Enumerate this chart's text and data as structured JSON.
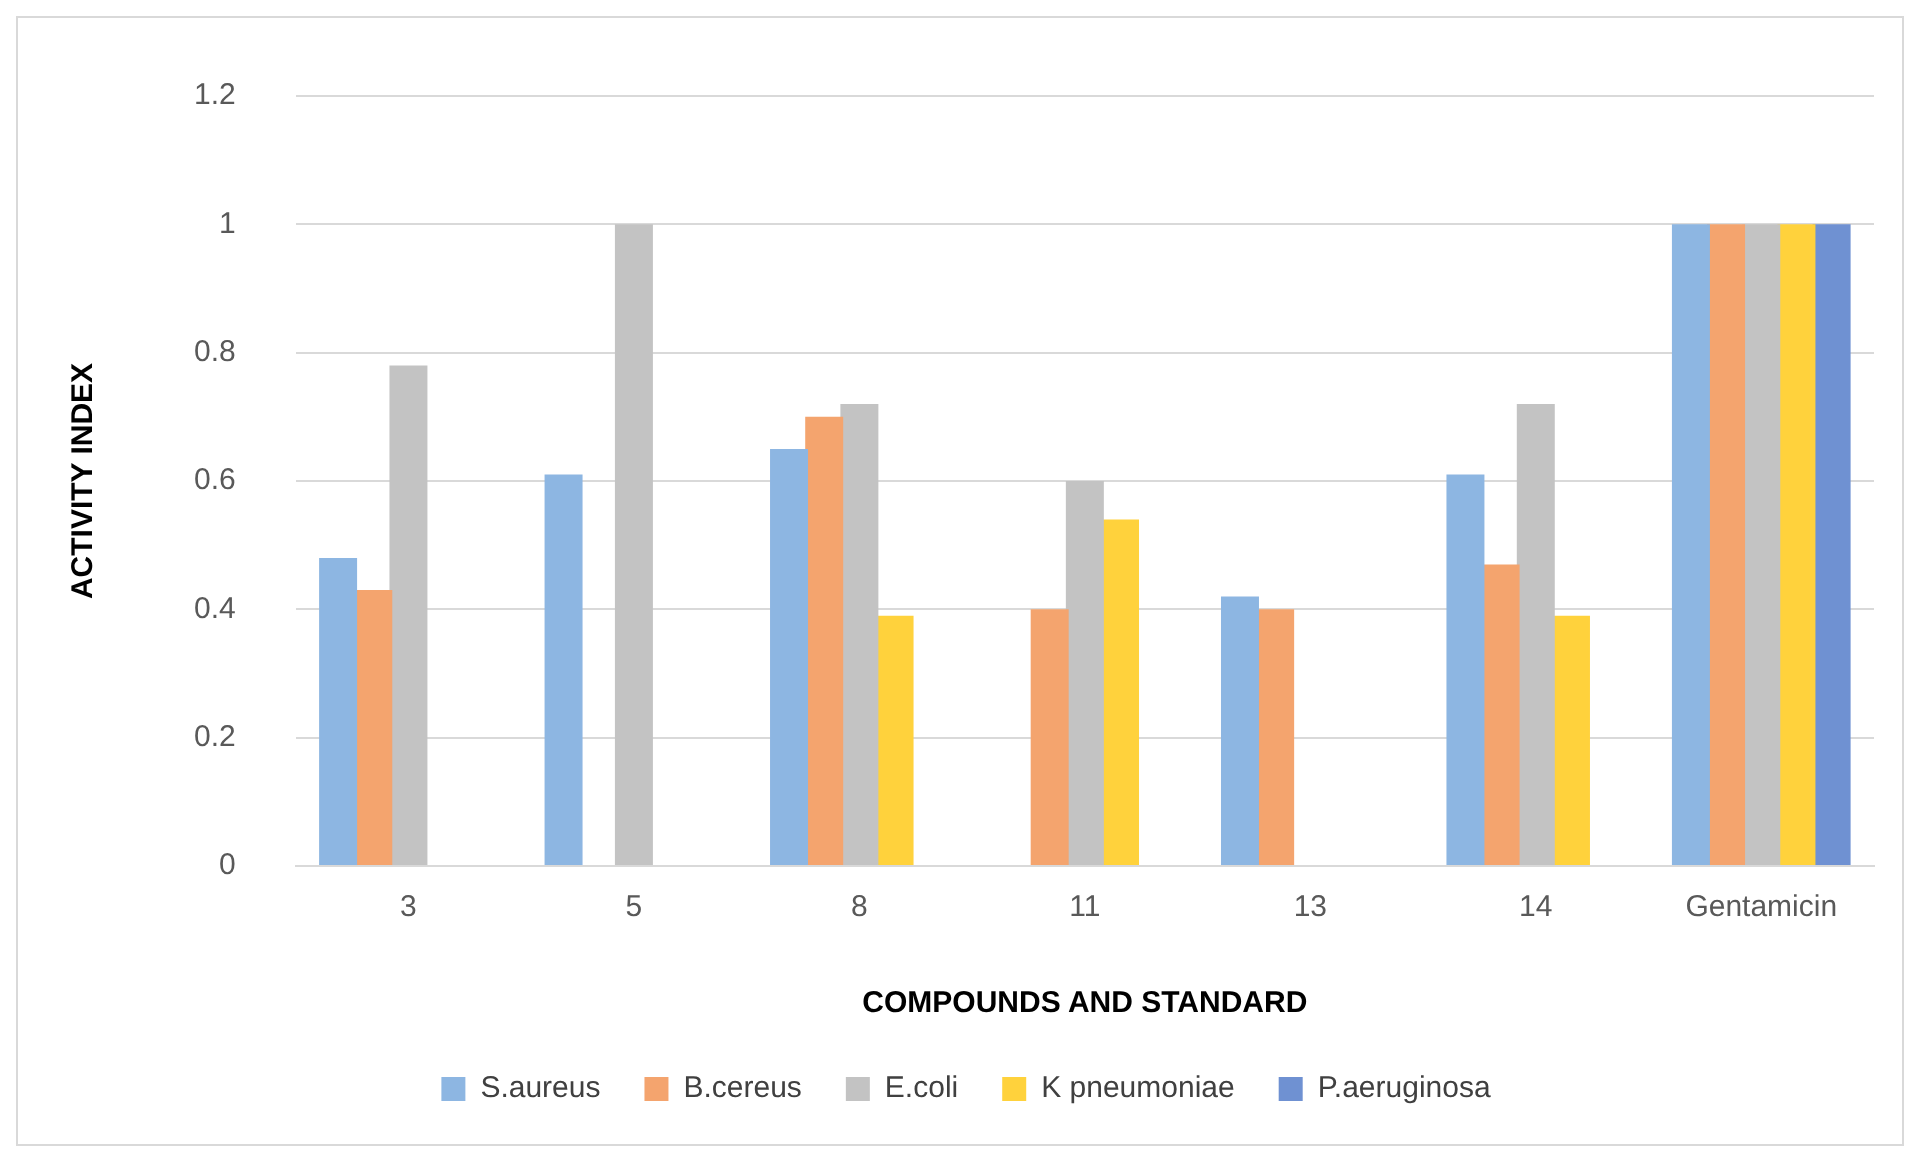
{
  "chart_data": {
    "type": "bar",
    "xlabel": "COMPOUNDS AND STANDARD",
    "ylabel": "ACTIVITY INDEX",
    "categories": [
      "3",
      "5",
      "8",
      "11",
      "13",
      "14",
      "Gentamicin"
    ],
    "series": [
      {
        "name": "S.aureus",
        "color": "#8db6e2",
        "values": [
          0.48,
          0.61,
          0.65,
          0,
          0.42,
          0.61,
          1
        ]
      },
      {
        "name": "B.cereus",
        "color": "#f4a46e",
        "values": [
          0.43,
          0,
          0.7,
          0.4,
          0.4,
          0.47,
          1
        ]
      },
      {
        "name": "E.coli",
        "color": "#c3c3c3",
        "values": [
          0.78,
          1,
          0.72,
          0.6,
          0,
          0.72,
          1
        ]
      },
      {
        "name": "K pneumoniae",
        "color": "#ffd23c",
        "values": [
          0,
          0,
          0.39,
          0.54,
          0,
          0.39,
          1
        ]
      },
      {
        "name": "P.aeruginosa",
        "color": "#6f91d2",
        "values": [
          0,
          0,
          0,
          0,
          0,
          0,
          1
        ]
      }
    ],
    "ylim": [
      0,
      1.2
    ],
    "yticks": [
      0,
      0.2,
      0.4,
      0.6,
      0.8,
      1,
      1.2
    ],
    "grid": "y",
    "legend": "bottom"
  }
}
